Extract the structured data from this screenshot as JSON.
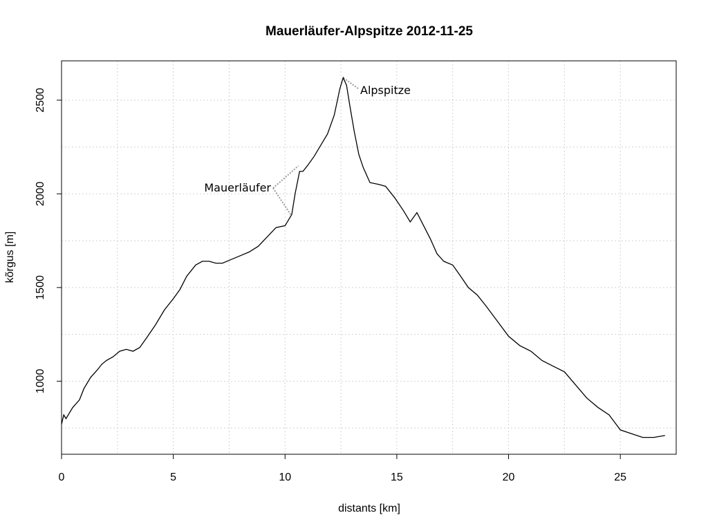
{
  "chart_data": {
    "type": "line",
    "title": "Mauerläufer-Alpspitze 2012-11-25",
    "xlabel": "distants [km]",
    "ylabel": "kõrgus [m]",
    "xlim": [
      0,
      27.5
    ],
    "ylim": [
      610,
      2710
    ],
    "xticks": [
      0,
      5,
      10,
      15,
      20,
      25
    ],
    "yticks": [
      1000,
      1500,
      2000,
      2500
    ],
    "grid": true,
    "annotations": [
      {
        "label": "Mauerläufer",
        "points": [
          [
            10.6,
            2150
          ],
          [
            10.25,
            1890
          ]
        ]
      },
      {
        "label": "Alpspitze",
        "points": [
          [
            12.6,
            2620
          ]
        ]
      }
    ],
    "series": [
      {
        "x": [
          0,
          0.1,
          0.2,
          0.3,
          0.5,
          0.8,
          1.0,
          1.3,
          1.6,
          1.8,
          2.0,
          2.3,
          2.6,
          2.9,
          3.2,
          3.5,
          3.8,
          4.2,
          4.6,
          5.0,
          5.3,
          5.6,
          6.0,
          6.3,
          6.6,
          6.9,
          7.2,
          7.6,
          8.0,
          8.4,
          8.8,
          9.2,
          9.6,
          10.0,
          10.3,
          10.45,
          10.65,
          10.8,
          11.0,
          11.3,
          11.6,
          11.9,
          12.2,
          12.45,
          12.6,
          12.75,
          12.9,
          13.1,
          13.3,
          13.5,
          13.8,
          14.2,
          14.5,
          14.9,
          15.3,
          15.6,
          15.9,
          16.2,
          16.5,
          16.8,
          17.1,
          17.5,
          17.8,
          18.2,
          18.6,
          19.0,
          19.5,
          20.0,
          20.5,
          21.0,
          21.5,
          22.0,
          22.5,
          23.0,
          23.5,
          24.0,
          24.5,
          25.0,
          25.5,
          26.0,
          26.5,
          27.0
        ],
        "y": [
          770,
          820,
          800,
          820,
          860,
          900,
          960,
          1020,
          1060,
          1090,
          1110,
          1130,
          1160,
          1170,
          1160,
          1180,
          1230,
          1300,
          1380,
          1440,
          1490,
          1560,
          1620,
          1640,
          1640,
          1630,
          1630,
          1650,
          1670,
          1690,
          1720,
          1770,
          1820,
          1830,
          1890,
          2000,
          2120,
          2120,
          2150,
          2200,
          2260,
          2320,
          2420,
          2560,
          2620,
          2580,
          2470,
          2330,
          2210,
          2140,
          2060,
          2050,
          2040,
          1980,
          1910,
          1850,
          1900,
          1830,
          1760,
          1680,
          1640,
          1620,
          1570,
          1500,
          1460,
          1400,
          1320,
          1240,
          1190,
          1160,
          1110,
          1080,
          1050,
          980,
          910,
          860,
          820,
          740,
          720,
          700,
          700,
          710
        ]
      }
    ]
  }
}
